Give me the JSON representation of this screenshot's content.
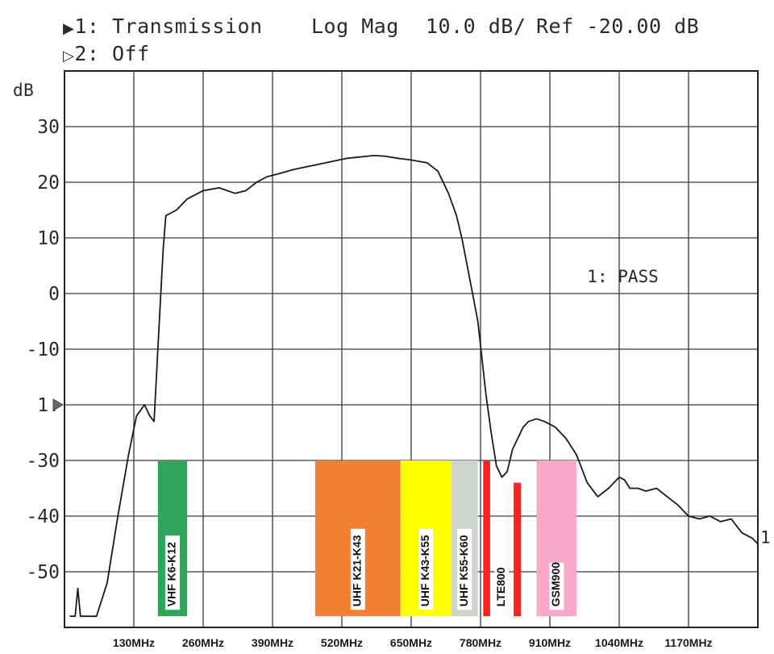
{
  "header": {
    "ch1_marker": "▶",
    "ch1_text": "1: Transmission",
    "format_text": "Log Mag",
    "scale_text": "10.0 dB/",
    "ref_text": "Ref -20.00 dB",
    "ch2_marker": "▷",
    "ch2_text": "2: Off"
  },
  "chart_data": {
    "type": "line",
    "ylabel": "dB",
    "ytick_labels": [
      "30",
      "20",
      "10",
      "0",
      "-10",
      "1:",
      "-30",
      "-40",
      "-50"
    ],
    "ytick_values": [
      30,
      20,
      10,
      0,
      -10,
      -20,
      -30,
      -40,
      -50
    ],
    "ylim": [
      -60,
      40
    ],
    "xtick_labels": [
      "130MHz",
      "260MHz",
      "390MHz",
      "520MHz",
      "650MHz",
      "780MHz",
      "910MHz",
      "1040MHz",
      "1170MHz"
    ],
    "xtick_values": [
      130,
      260,
      390,
      520,
      650,
      780,
      910,
      1040,
      1170
    ],
    "xlim": [
      0,
      1300
    ],
    "grid": true,
    "pass_text": "1: PASS",
    "trace_end_label": "1",
    "series": [
      {
        "x": [
          10,
          20,
          25,
          30,
          40,
          60,
          80,
          100,
          120,
          135,
          150,
          160,
          168,
          175,
          185,
          190,
          200,
          210,
          230,
          260,
          290,
          320,
          340,
          360,
          380,
          400,
          430,
          480,
          530,
          580,
          600,
          625,
          650,
          680,
          700,
          720,
          735,
          745,
          755,
          765,
          775,
          790,
          800,
          810,
          820,
          830,
          840,
          850,
          860,
          870,
          885,
          900,
          920,
          940,
          960,
          980,
          1000,
          1020,
          1040,
          1050,
          1060,
          1075,
          1090,
          1110,
          1130,
          1150,
          1170,
          1190,
          1210,
          1230,
          1250,
          1270,
          1290,
          1300
        ],
        "y": [
          -58,
          -58,
          -53,
          -58,
          -58,
          -58,
          -52,
          -40,
          -29,
          -22,
          -20,
          -22,
          -23,
          -10,
          8,
          14,
          14.5,
          15,
          17,
          18.5,
          19,
          18,
          18.5,
          20,
          21,
          21.5,
          22.3,
          23.3,
          24.3,
          24.8,
          24.7,
          24.3,
          24,
          23.5,
          22,
          18,
          14,
          10,
          5,
          0,
          -5,
          -18,
          -25,
          -31,
          -33,
          -32,
          -28,
          -26,
          -24,
          -23,
          -22.5,
          -23,
          -24,
          -26,
          -29,
          -34,
          -36.5,
          -35,
          -33,
          -33.5,
          -35,
          -35,
          -35.5,
          -35,
          -36.5,
          -38,
          -40,
          -40.5,
          -40,
          -41,
          -40.5,
          -43,
          -44,
          -45
        ]
      }
    ],
    "bands": [
      {
        "label": "VHF K6-K12",
        "x0": 175,
        "x1": 230,
        "y_top": -30,
        "color": "#2ea55a"
      },
      {
        "label": "UHF K21-K43",
        "x0": 470,
        "x1": 630,
        "y_top": -30,
        "color": "#f48031"
      },
      {
        "label": "UHF K43-K55",
        "x0": 630,
        "x1": 725,
        "y_top": -30,
        "color": "#ffff00"
      },
      {
        "label": "UHF K55-K60",
        "x0": 725,
        "x1": 775,
        "y_top": -30,
        "color": "#cfd5cd"
      },
      {
        "label": "",
        "x0": 785,
        "x1": 798,
        "y_top": -30,
        "color": "#ff2020"
      },
      {
        "label": "LTE800",
        "x0": 798,
        "x1": 842,
        "y_top": -58,
        "color": "#ffffff"
      },
      {
        "label": "",
        "x0": 842,
        "x1": 856,
        "y_top": -34,
        "color": "#ff2020"
      },
      {
        "label": "GSM900",
        "x0": 885,
        "x1": 960,
        "y_top": -30,
        "color": "#f9a8c9"
      }
    ]
  }
}
